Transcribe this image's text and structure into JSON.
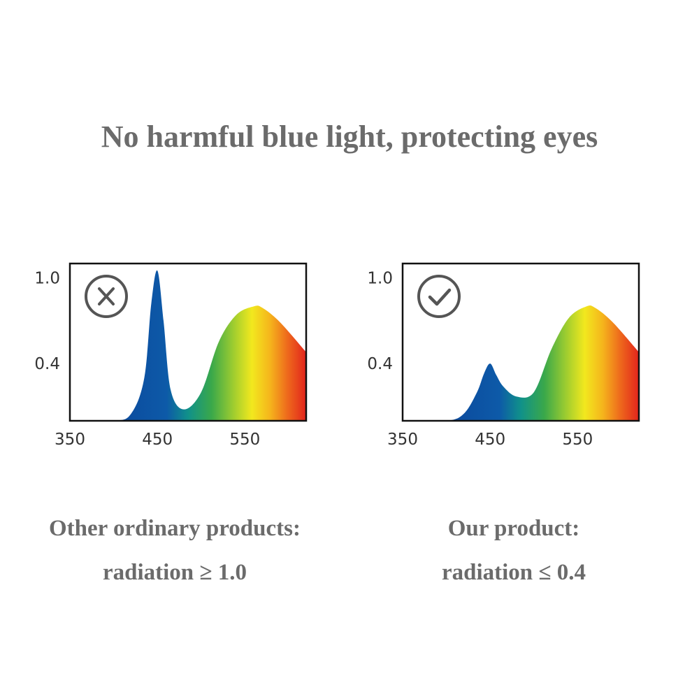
{
  "headline": "No harmful blue light, protecting eyes",
  "chart_data": [
    {
      "type": "area",
      "x": [
        350,
        400,
        420,
        435,
        443,
        450,
        457,
        465,
        480,
        500,
        520,
        540,
        560,
        570,
        590,
        620
      ],
      "y": [
        0,
        0,
        0.05,
        0.3,
        0.82,
        1.05,
        0.7,
        0.22,
        0.08,
        0.2,
        0.55,
        0.74,
        0.8,
        0.79,
        0.69,
        0.48
      ],
      "xlim": [
        350,
        620
      ],
      "ylim": [
        0,
        1.1
      ],
      "xticks": [
        "350",
        "450",
        "550"
      ],
      "yticks": [
        "1.0",
        "0.4"
      ],
      "marker": "x-icon",
      "caption_line1": "Other ordinary products:",
      "caption_line2": "radiation ≥ 1.0"
    },
    {
      "type": "area",
      "x": [
        350,
        400,
        420,
        435,
        443,
        450,
        457,
        465,
        480,
        500,
        520,
        540,
        560,
        570,
        590,
        620
      ],
      "y": [
        0,
        0,
        0.05,
        0.2,
        0.33,
        0.4,
        0.32,
        0.24,
        0.17,
        0.2,
        0.5,
        0.72,
        0.8,
        0.79,
        0.69,
        0.48
      ],
      "xlim": [
        350,
        620
      ],
      "ylim": [
        0,
        1.1
      ],
      "xticks": [
        "350",
        "450",
        "550"
      ],
      "yticks": [
        "1.0",
        "0.4"
      ],
      "marker": "check-icon",
      "caption_line1": "Our product:",
      "caption_line2": "radiation ≤ 0.4"
    }
  ],
  "colors": {
    "text": "#6b6b6b",
    "blue": "#0b3a93",
    "spectrum": [
      "#0b3a93",
      "#0d5aa8",
      "#10918a",
      "#3aa84a",
      "#9ccc30",
      "#f2e81e",
      "#f5b21c",
      "#ee6a1c",
      "#e2241c"
    ]
  }
}
